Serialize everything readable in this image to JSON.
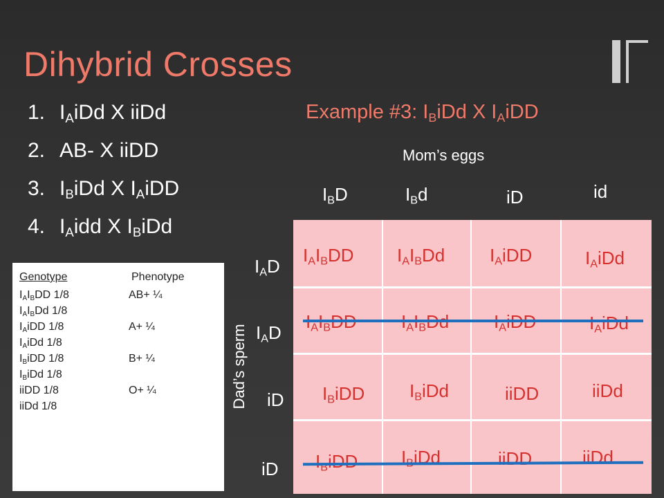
{
  "title": "Dihybrid Crosses",
  "crosses": [
    {
      "num": "1.",
      "html": "I<sub>A</sub>iDd X iiDd"
    },
    {
      "num": "2.",
      "html": "AB- X iiDD"
    },
    {
      "num": "3.",
      "html": "I<sub>B</sub>iDd X I<sub>A</sub>iDD"
    },
    {
      "num": "4.",
      "html": "I<sub>A</sub>idd X I<sub>B</sub>iDd"
    }
  ],
  "example": "Example #3:  I<sub>B</sub>iDd X I<sub>A</sub>iDD",
  "moms_label": "Mom’s eggs",
  "dads_label": "Dad’s sperm",
  "col_headers": [
    "I<sub>B</sub>D",
    "I<sub>B</sub>d",
    "iD",
    "id"
  ],
  "row_headers": [
    "I<sub>A</sub>D",
    "I<sub>A</sub>D",
    "iD",
    "iD"
  ],
  "cells": [
    [
      "I<sub>A</sub>I<sub>B</sub>DD",
      "I<sub>A</sub>I<sub>B</sub>Dd",
      "I<sub>A</sub>iDD",
      "I<sub>A</sub>iDd"
    ],
    [
      "I<sub>A</sub>I<sub>B</sub>DD",
      "I<sub>A</sub>I<sub>B</sub>Dd",
      "I<sub>A</sub>iDD",
      "I<sub>A</sub>iDd"
    ],
    [
      "I<sub>B</sub>iDD",
      "I<sub>B</sub>iDd",
      "iiDD",
      "iiDd"
    ],
    [
      "I<sub>B</sub>iDD",
      "I<sub>B</sub>iDd",
      "iiDD",
      "iiDd"
    ]
  ],
  "struck_rows": [
    1,
    3
  ],
  "table": {
    "genotype_header": "Genotype",
    "phenotype_header": "Phenotype",
    "rows": [
      {
        "genotype": "I<sub>A</sub>I<sub>B</sub>DD 1/8",
        "phenotype": "AB+   ¼"
      },
      {
        "genotype": "I<sub>A</sub>I<sub>B</sub>Dd  1/8",
        "phenotype": ""
      },
      {
        "genotype": "I<sub>A</sub>iDD   1/8",
        "phenotype": "A+  ¼"
      },
      {
        "genotype": "I<sub>A</sub>iDd    1/8",
        "phenotype": ""
      },
      {
        "genotype": "I<sub>B</sub>iDD   1/8",
        "phenotype": "B+  ¼"
      },
      {
        "genotype": "I<sub>B</sub>iDd    1/8",
        "phenotype": ""
      },
      {
        "genotype": "iiDD     1/8",
        "phenotype": "O+  ¼"
      },
      {
        "genotype": "iiDd      1/8",
        "phenotype": ""
      }
    ]
  },
  "colors": {
    "title": "#f07a6a",
    "cell_text": "#d6312e",
    "cell_bg": "#f9c5c8",
    "strike_line": "#1f6fbf"
  }
}
